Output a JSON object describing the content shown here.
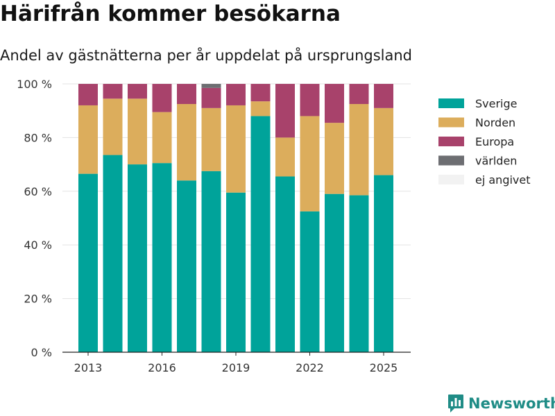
{
  "header": {
    "title": "Härifrån kommer besökarna",
    "subtitle": "Andel av gästnätterna per år uppdelat på ursprungsland"
  },
  "brand": {
    "name": "Newsworthy",
    "icon": "newsworthy-logo-icon",
    "color": "#1f8c86"
  },
  "chart_data": {
    "type": "bar",
    "stacked": true,
    "title": "Härifrån kommer besökarna",
    "subtitle": "Andel av gästnätterna per år uppdelat på ursprungsland",
    "xlabel": "",
    "ylabel": "",
    "categories": [
      "2013",
      "2014",
      "2015",
      "2016",
      "2017",
      "2018",
      "2019",
      "2020",
      "2021",
      "2022",
      "2023",
      "2024",
      "2025"
    ],
    "x_tick_labels": [
      "2013",
      "2016",
      "2019",
      "2022",
      "2025"
    ],
    "y_ticks": [
      0,
      20,
      40,
      60,
      80,
      100
    ],
    "y_tick_labels": [
      "0 %",
      "20 %",
      "40 %",
      "60 %",
      "80 %",
      "100 %"
    ],
    "ylim": [
      0,
      100
    ],
    "grid": true,
    "legend_position": "right",
    "series": [
      {
        "name": "Sverige",
        "color": "#00a39a",
        "values": [
          66.5,
          73.5,
          70,
          70.5,
          64,
          67.5,
          59.5,
          88,
          65.5,
          52.5,
          59,
          58.5,
          66
        ]
      },
      {
        "name": "Norden",
        "color": "#dcad5c",
        "values": [
          25.5,
          21,
          24.5,
          19,
          28.5,
          23.5,
          32.5,
          5.5,
          14.5,
          35.5,
          26.5,
          34,
          25
        ]
      },
      {
        "name": "Europa",
        "color": "#a8426b",
        "values": [
          8,
          5.5,
          5.5,
          10.5,
          7.5,
          7.5,
          8,
          6.5,
          20,
          12,
          14.5,
          7.5,
          9
        ]
      },
      {
        "name": "världen",
        "color": "#6d6e72",
        "values": [
          0,
          0,
          0,
          0,
          0,
          1.5,
          0,
          0,
          0,
          0,
          0,
          0,
          0
        ]
      },
      {
        "name": "ej angivet",
        "color": "#f2f2f2",
        "values": [
          0,
          0,
          0,
          0,
          0,
          0,
          0,
          0,
          0,
          0,
          0,
          0,
          0
        ]
      }
    ]
  }
}
